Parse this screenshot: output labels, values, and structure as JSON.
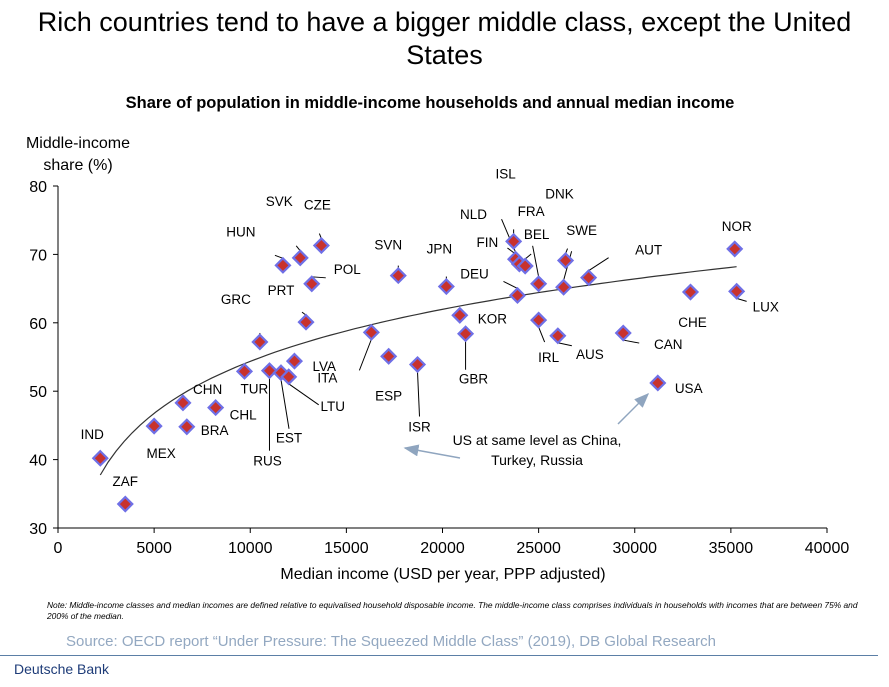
{
  "chart_data": {
    "type": "scatter",
    "title": "Rich countries tend to have a bigger middle class, except the United States",
    "subtitle": "Share of population in middle-income households and annual median income",
    "xlabel": "Median income (USD per year, PPP adjusted)",
    "ylabel": "Middle-income share (%)",
    "xlim": [
      0,
      40000
    ],
    "ylim": [
      30,
      80
    ],
    "x_ticks": [
      "0",
      "5000",
      "10000",
      "15000",
      "20000",
      "25000",
      "30000",
      "35000",
      "40000"
    ],
    "y_ticks": [
      "30",
      "40",
      "50",
      "60",
      "70",
      "80"
    ],
    "grid": false,
    "marker_fill": "#C8322D",
    "marker_edge": "#6F6FE6",
    "trendline": {
      "type": "logarithmic",
      "color": "#333333",
      "x_from": 2200,
      "x_to": 35300
    },
    "points": [
      {
        "label": "IND",
        "x": 2200,
        "y": 40.2
      },
      {
        "label": "ZAF",
        "x": 3500,
        "y": 33.5
      },
      {
        "label": "MEX",
        "x": 5000,
        "y": 44.9
      },
      {
        "label": "CHN",
        "x": 6500,
        "y": 48.3
      },
      {
        "label": "BRA",
        "x": 6700,
        "y": 44.8
      },
      {
        "label": "CHL",
        "x": 8200,
        "y": 47.6
      },
      {
        "label": "TUR",
        "x": 9700,
        "y": 52.9
      },
      {
        "label": "GRC",
        "x": 10500,
        "y": 57.2
      },
      {
        "label": "RUS",
        "x": 11000,
        "y": 53.0
      },
      {
        "label": "EST",
        "x": 11600,
        "y": 52.7
      },
      {
        "label": "LTU",
        "x": 12000,
        "y": 52.1
      },
      {
        "label": "LVA",
        "x": 12300,
        "y": 54.4
      },
      {
        "label": "HUN",
        "x": 11700,
        "y": 68.4
      },
      {
        "label": "SVK",
        "x": 12600,
        "y": 69.5
      },
      {
        "label": "CZE",
        "x": 13700,
        "y": 71.3
      },
      {
        "label": "POL",
        "x": 13200,
        "y": 65.7
      },
      {
        "label": "PRT",
        "x": 12900,
        "y": 60.1
      },
      {
        "label": "ITA",
        "x": 16300,
        "y": 58.6
      },
      {
        "label": "ESP",
        "x": 17200,
        "y": 55.1
      },
      {
        "label": "SVN",
        "x": 17700,
        "y": 66.9
      },
      {
        "label": "ISR",
        "x": 18700,
        "y": 53.9
      },
      {
        "label": "JPN",
        "x": 20200,
        "y": 65.3
      },
      {
        "label": "KOR",
        "x": 20900,
        "y": 61.1
      },
      {
        "label": "GBR",
        "x": 21200,
        "y": 58.4
      },
      {
        "label": "ISL",
        "x": 23700,
        "y": 71.9
      },
      {
        "label": "NLD",
        "x": 23800,
        "y": 69.3
      },
      {
        "label": "FIN",
        "x": 24000,
        "y": 68.6
      },
      {
        "label": "FRA",
        "x": 24300,
        "y": 68.3
      },
      {
        "label": "DEU",
        "x": 23900,
        "y": 64.0
      },
      {
        "label": "BEL",
        "x": 25000,
        "y": 65.7
      },
      {
        "label": "IRL",
        "x": 25000,
        "y": 60.4
      },
      {
        "label": "AUS",
        "x": 26000,
        "y": 58.1
      },
      {
        "label": "DNK",
        "x": 26400,
        "y": 69.1
      },
      {
        "label": "SWE",
        "x": 26300,
        "y": 65.2
      },
      {
        "label": "AUT",
        "x": 27600,
        "y": 66.6
      },
      {
        "label": "CAN",
        "x": 29400,
        "y": 58.5
      },
      {
        "label": "USA",
        "x": 31200,
        "y": 51.2
      },
      {
        "label": "CHE",
        "x": 32900,
        "y": 64.5
      },
      {
        "label": "NOR",
        "x": 35200,
        "y": 70.8
      },
      {
        "label": "LUX",
        "x": 35300,
        "y": 64.6
      }
    ],
    "annotation": "US at same level as China, Turkey, Russia"
  },
  "footer": {
    "note": "Note: Middle-income classes and median incomes are defined relative to equivalised household disposable income. The middle-income class comprises individuals in households with incomes that are between 75% and 200% of the median.",
    "source": "Source: OECD report “Under Pressure: The Squeezed Middle Class” (2019), DB Global Research",
    "brand": "Deutsche Bank"
  }
}
